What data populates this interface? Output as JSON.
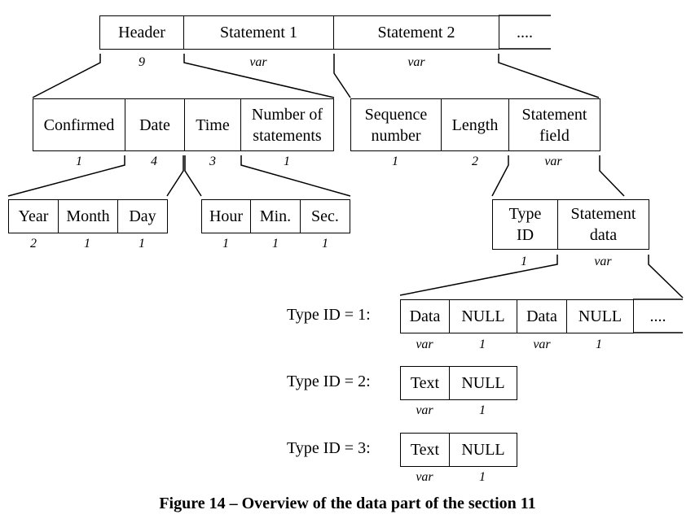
{
  "level0": {
    "header": "Header",
    "header_size": "9",
    "statement1": "Statement 1",
    "statement1_size": "var",
    "statement2": "Statement 2",
    "statement2_size": "var",
    "more": "...."
  },
  "header_fields": {
    "confirmed": "Confirmed",
    "confirmed_size": "1",
    "date": "Date",
    "date_size": "4",
    "time": "Time",
    "time_size": "3",
    "num_statements_line1": "Number of",
    "num_statements_line2": "statements",
    "num_statements_size": "1"
  },
  "statement_fields": {
    "sequence_line1": "Sequence",
    "sequence_line2": "number",
    "sequence_size": "1",
    "length": "Length",
    "length_size": "2",
    "field_line1": "Statement",
    "field_line2": "field",
    "field_size": "var"
  },
  "date_fields": {
    "year": "Year",
    "year_size": "2",
    "month": "Month",
    "month_size": "1",
    "day": "Day",
    "day_size": "1"
  },
  "time_fields": {
    "hour": "Hour",
    "hour_size": "1",
    "min": "Min.",
    "min_size": "1",
    "sec": "Sec.",
    "sec_size": "1"
  },
  "statement_field_parts": {
    "type_line1": "Type",
    "type_line2": "ID",
    "type_size": "1",
    "data_line1": "Statement",
    "data_line2": "data",
    "data_size": "var"
  },
  "type1": {
    "label": "Type ID = 1:",
    "data1": "Data",
    "data1_size": "var",
    "null1": "NULL",
    "null1_size": "1",
    "data2": "Data",
    "data2_size": "var",
    "null2": "NULL",
    "null2_size": "1",
    "more": "...."
  },
  "type2": {
    "label": "Type ID = 2:",
    "text": "Text",
    "text_size": "var",
    "null": "NULL",
    "null_size": "1"
  },
  "type3": {
    "label": "Type ID = 3:",
    "text": "Text",
    "text_size": "var",
    "null": "NULL",
    "null_size": "1"
  },
  "caption": "Figure 14 – Overview of the data part of the section 11"
}
